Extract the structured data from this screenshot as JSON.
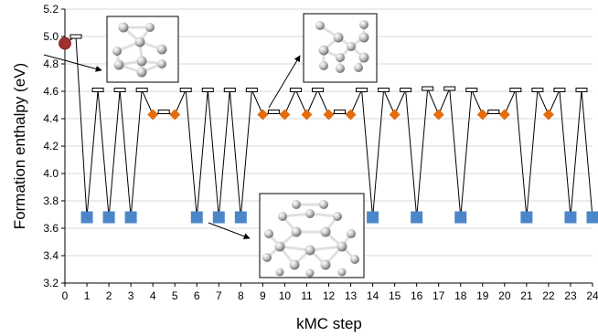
{
  "chart_data": {
    "type": "line",
    "title": "",
    "xlabel": "kMC step",
    "ylabel": "Formation enthalpy (eV)",
    "xlim": [
      0,
      24
    ],
    "ylim": [
      3.2,
      5.2
    ],
    "x_ticks": [
      "0",
      "1",
      "2",
      "3",
      "4",
      "5",
      "6",
      "7",
      "8",
      "9",
      "10",
      "11",
      "12",
      "13",
      "14",
      "15",
      "16",
      "17",
      "18",
      "19",
      "20",
      "21",
      "22",
      "23",
      "24"
    ],
    "y_ticks": [
      "3.2",
      "3.4",
      "3.6",
      "3.8",
      "4.0",
      "4.2",
      "4.4",
      "4.6",
      "4.8",
      "5.0",
      "5.2"
    ],
    "grid": "horizontal",
    "legend": "none",
    "colors": {
      "initial": "#A0302E",
      "transition": "#ffffff",
      "orange": "#E46C0A",
      "blue": "#4A86C8",
      "line": "#000000",
      "grid": "#d9d9d9"
    },
    "path": [
      {
        "x": 0,
        "y": 4.95,
        "kind": "initial"
      },
      {
        "x": 0.5,
        "y": 5.0,
        "kind": "transition"
      },
      {
        "x": 1,
        "y": 3.68,
        "kind": "blue"
      },
      {
        "x": 1.5,
        "y": 4.61,
        "kind": "transition"
      },
      {
        "x": 2,
        "y": 3.68,
        "kind": "blue"
      },
      {
        "x": 2.5,
        "y": 4.61,
        "kind": "transition"
      },
      {
        "x": 3,
        "y": 3.68,
        "kind": "blue"
      },
      {
        "x": 3.5,
        "y": 4.61,
        "kind": "transition"
      },
      {
        "x": 4,
        "y": 4.43,
        "kind": "orange"
      },
      {
        "x": 4.5,
        "y": 4.45,
        "kind": "transition"
      },
      {
        "x": 5,
        "y": 4.43,
        "kind": "orange"
      },
      {
        "x": 5.5,
        "y": 4.61,
        "kind": "transition"
      },
      {
        "x": 6,
        "y": 3.68,
        "kind": "blue"
      },
      {
        "x": 6.5,
        "y": 4.61,
        "kind": "transition"
      },
      {
        "x": 7,
        "y": 3.68,
        "kind": "blue"
      },
      {
        "x": 7.5,
        "y": 4.61,
        "kind": "transition"
      },
      {
        "x": 8,
        "y": 3.68,
        "kind": "blue"
      },
      {
        "x": 8.5,
        "y": 4.61,
        "kind": "transition"
      },
      {
        "x": 9,
        "y": 4.43,
        "kind": "orange"
      },
      {
        "x": 9.5,
        "y": 4.45,
        "kind": "transition"
      },
      {
        "x": 10,
        "y": 4.43,
        "kind": "orange"
      },
      {
        "x": 10.5,
        "y": 4.61,
        "kind": "transition"
      },
      {
        "x": 11,
        "y": 4.43,
        "kind": "orange"
      },
      {
        "x": 11.5,
        "y": 4.61,
        "kind": "transition"
      },
      {
        "x": 12,
        "y": 4.43,
        "kind": "orange"
      },
      {
        "x": 12.5,
        "y": 4.45,
        "kind": "transition"
      },
      {
        "x": 13,
        "y": 4.43,
        "kind": "orange"
      },
      {
        "x": 13.5,
        "y": 4.61,
        "kind": "transition"
      },
      {
        "x": 14,
        "y": 3.68,
        "kind": "blue"
      },
      {
        "x": 14.5,
        "y": 4.61,
        "kind": "transition"
      },
      {
        "x": 15,
        "y": 4.43,
        "kind": "orange"
      },
      {
        "x": 15.5,
        "y": 4.61,
        "kind": "transition"
      },
      {
        "x": 16,
        "y": 3.68,
        "kind": "blue"
      },
      {
        "x": 16.5,
        "y": 4.62,
        "kind": "transition"
      },
      {
        "x": 17,
        "y": 4.43,
        "kind": "orange"
      },
      {
        "x": 17.5,
        "y": 4.62,
        "kind": "transition"
      },
      {
        "x": 18,
        "y": 3.68,
        "kind": "blue"
      },
      {
        "x": 18.5,
        "y": 4.61,
        "kind": "transition"
      },
      {
        "x": 19,
        "y": 4.43,
        "kind": "orange"
      },
      {
        "x": 19.5,
        "y": 4.45,
        "kind": "transition"
      },
      {
        "x": 20,
        "y": 4.43,
        "kind": "orange"
      },
      {
        "x": 20.5,
        "y": 4.61,
        "kind": "transition"
      },
      {
        "x": 21,
        "y": 3.68,
        "kind": "blue"
      },
      {
        "x": 21.5,
        "y": 4.61,
        "kind": "transition"
      },
      {
        "x": 22,
        "y": 4.43,
        "kind": "orange"
      },
      {
        "x": 22.5,
        "y": 4.61,
        "kind": "transition"
      },
      {
        "x": 23,
        "y": 3.68,
        "kind": "blue"
      },
      {
        "x": 23.5,
        "y": 4.61,
        "kind": "transition"
      },
      {
        "x": 24,
        "y": 3.68,
        "kind": "blue"
      }
    ],
    "insets": [
      {
        "name": "initial-structure",
        "points_to": {
          "x": 0,
          "y": 4.95
        }
      },
      {
        "name": "orange-structure",
        "points_to": {
          "x": 9,
          "y": 4.43
        }
      },
      {
        "name": "blue-structure",
        "points_to": {
          "x": 6,
          "y": 3.68
        }
      }
    ]
  }
}
